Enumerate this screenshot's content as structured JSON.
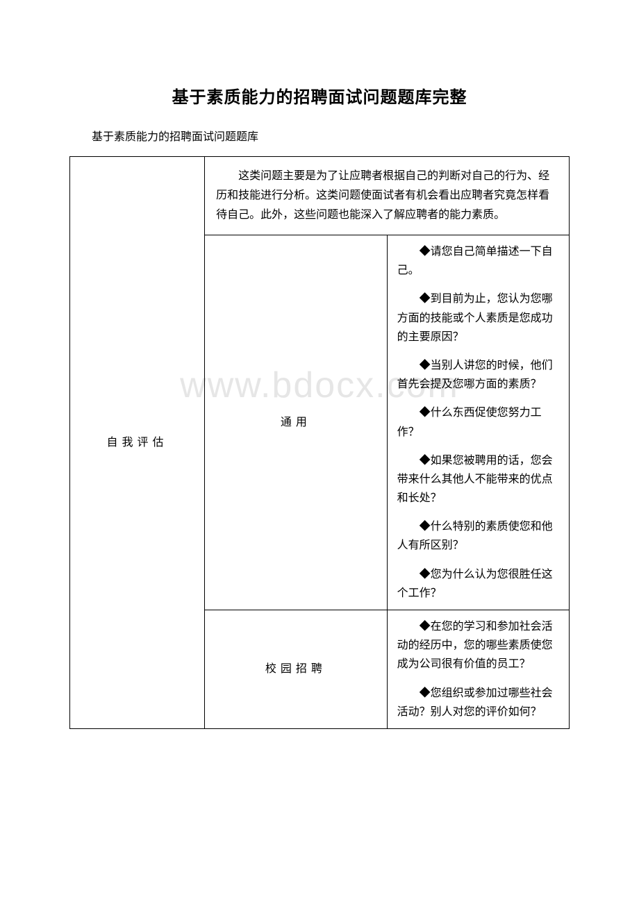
{
  "title": "基于素质能力的招聘面试问题题库完整",
  "subtitle": "基于素质能力的招聘面试问题题库",
  "watermark": "www.bdocx.com",
  "table": {
    "category": "自我评估",
    "description": "这类问题主要是为了让应聘者根据自己的判断对自己的行为、经历和技能进行分析。这类问题使面试者有机会看出应聘者究竟怎样看待自己。此外，这些问题也能深入了解应聘者的能力素质。",
    "sections": [
      {
        "label": "通用",
        "questions": [
          "◆请您自己简单描述一下自己。",
          "◆到目前为止，您认为您哪方面的技能或个人素质是您成功的主要原因？",
          "◆当别人讲您的时候，他们首先会提及您哪方面的素质？",
          "◆什么东西促使您努力工作？",
          "◆如果您被聘用的话，您会带来什么其他人不能带来的优点和长处？",
          "◆什么特别的素质使您和他人有所区别？",
          "◆您为什么认为您很胜任这个工作？"
        ]
      },
      {
        "label": "校园招聘",
        "questions": [
          "◆在您的学习和参加社会活动的经历中，您的哪些素质使您成为公司很有价值的员工？",
          "◆您组织或参加过哪些社会活动？别人对您的评价如何？"
        ]
      }
    ]
  }
}
